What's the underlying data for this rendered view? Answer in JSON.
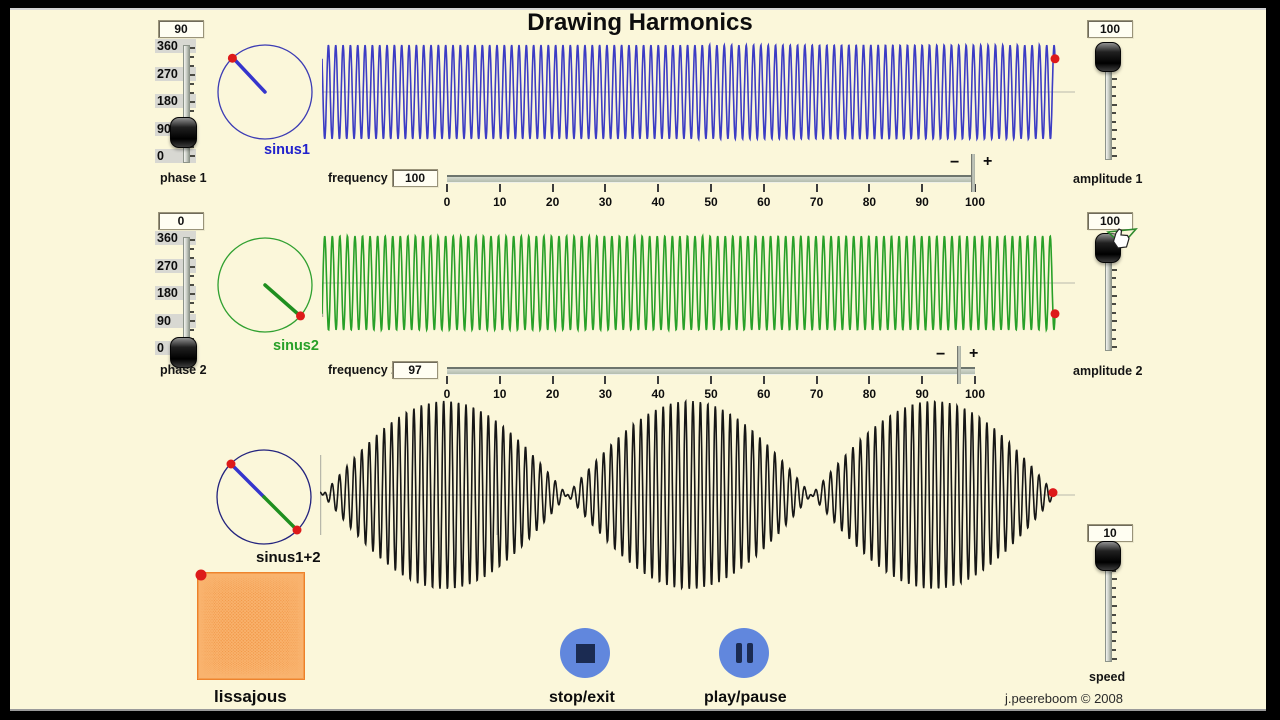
{
  "title": "Drawing Harmonics",
  "credit": "j.peereboom © 2008",
  "colors": {
    "background": "#fbf7da",
    "wave1": "#3c3cc4",
    "wave2": "#28a028",
    "wave_sum": "#161616",
    "accent_red": "#dd1a1a",
    "button_blue": "#6187dd",
    "button_icon": "#1b2b52",
    "lissajous_orange": "#ef7412"
  },
  "phase1": {
    "label": "phase 1",
    "value": "90",
    "scale": [
      "360",
      "270",
      "180",
      "90",
      "0"
    ]
  },
  "phase2": {
    "label": "phase 2",
    "value": "0",
    "scale": [
      "360",
      "270",
      "180",
      "90",
      "0"
    ]
  },
  "circle_labels": {
    "sinus1": "sinus1",
    "sinus2": "sinus2",
    "sum": "sinus1+2"
  },
  "frequency1": {
    "label": "frequency 1",
    "value": "100",
    "ticks": [
      "0",
      "10",
      "20",
      "30",
      "40",
      "50",
      "60",
      "70",
      "80",
      "90",
      "100"
    ],
    "minus": "−",
    "plus": "+"
  },
  "frequency2": {
    "label": "frequency 2",
    "value": "97",
    "ticks": [
      "0",
      "10",
      "20",
      "30",
      "40",
      "50",
      "60",
      "70",
      "80",
      "90",
      "100"
    ],
    "minus": "−",
    "plus": "+"
  },
  "amplitude1": {
    "label": "amplitude 1",
    "value": "100"
  },
  "amplitude2": {
    "label": "amplitude 2",
    "value": "100"
  },
  "speed": {
    "label": "speed",
    "value": "10"
  },
  "buttons": {
    "stop": "stop/exit",
    "play": "play/pause"
  },
  "lissajous_label": "lissajous",
  "waves": {
    "sinus1": {
      "type": "sine",
      "frequency": 100,
      "phase_deg": 135,
      "color": "#3c3cc4"
    },
    "sinus2": {
      "type": "sine",
      "frequency": 97,
      "phase_deg": -41,
      "color": "#28a028"
    },
    "sum": {
      "type": "sum",
      "components": [
        "sinus1",
        "sinus2"
      ],
      "color": "#161616"
    },
    "lissajous": {
      "type": "lissajous",
      "fx": 100,
      "fy": 97,
      "phase_x_deg": 135,
      "phase_y_deg": -41
    }
  }
}
